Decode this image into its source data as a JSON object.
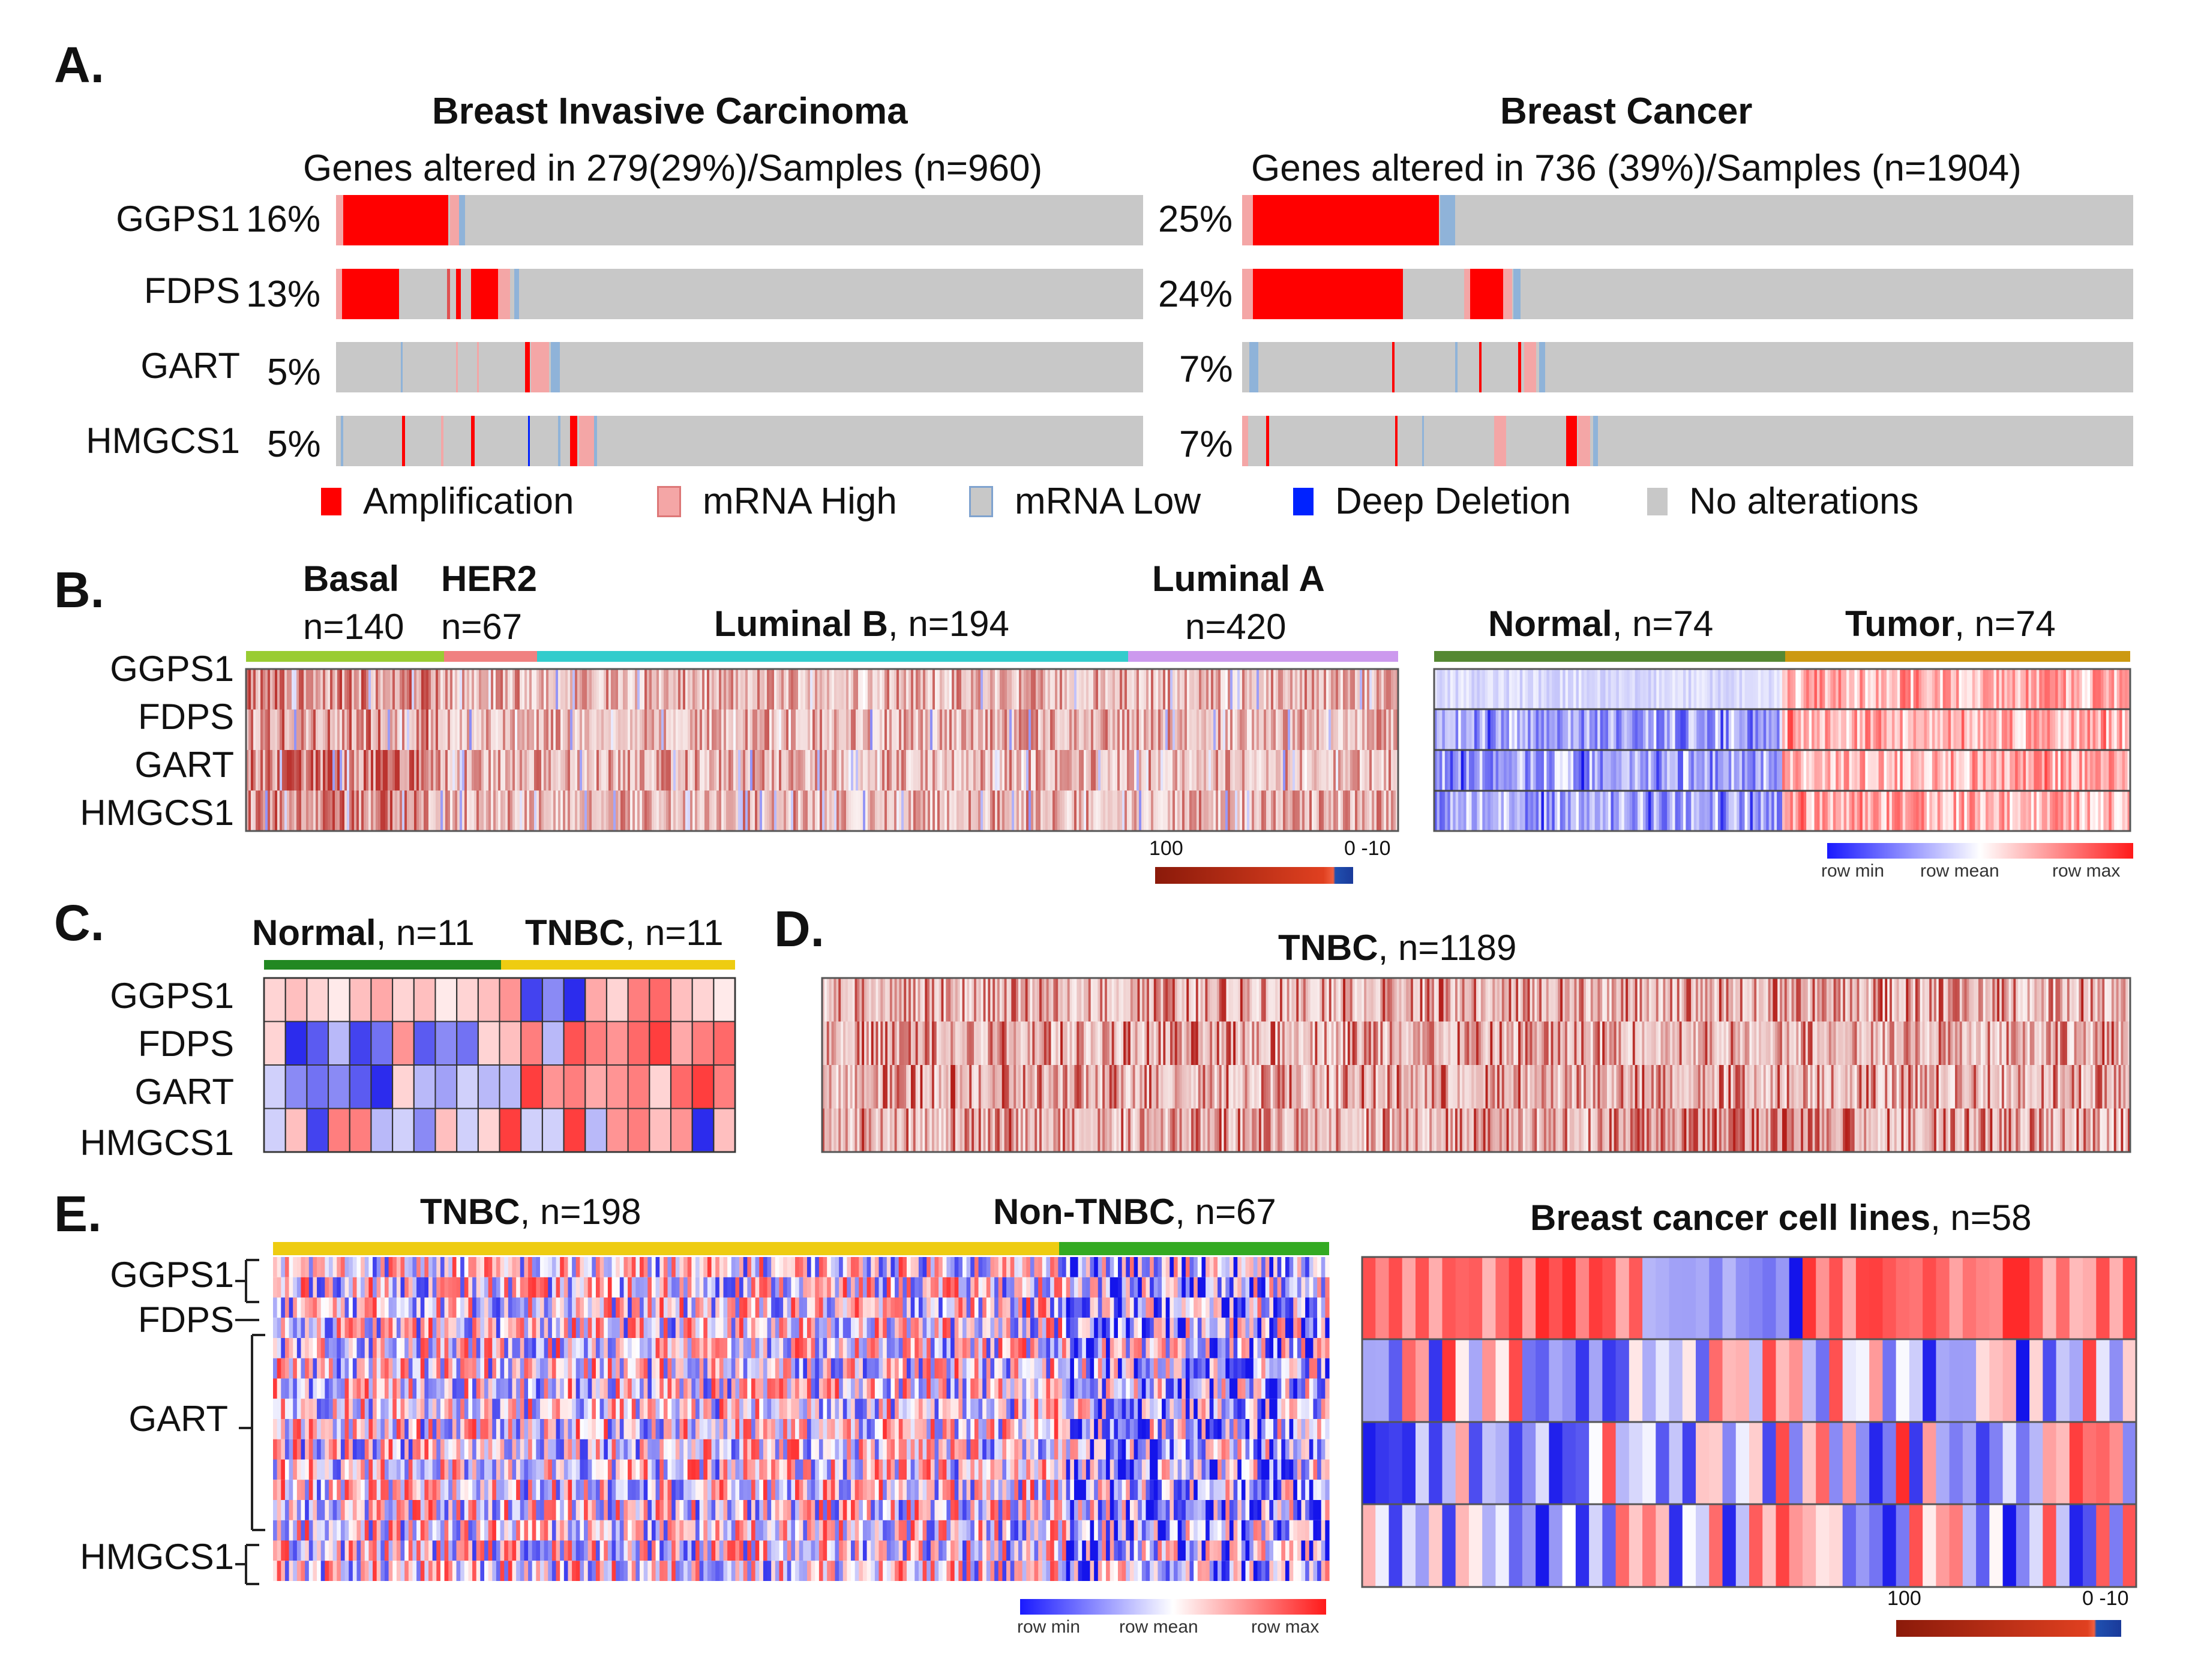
{
  "panels": {
    "A": {
      "label": "A.",
      "left": {
        "title": "Breast Invasive Carcinoma",
        "subtitle": "Genes altered in 279(29%)/Samples (n=960)",
        "rows": [
          {
            "gene": "GGPS1",
            "pct": "16%"
          },
          {
            "gene": "FDPS",
            "pct": "13%"
          },
          {
            "gene": "GART",
            "pct": "5%"
          },
          {
            "gene": "HMGCS1",
            "pct": "5%"
          }
        ]
      },
      "right": {
        "title": "Breast Cancer",
        "subtitle": "Genes altered in 736 (39%)/Samples (n=1904)",
        "rows": [
          {
            "gene": "GGPS1",
            "pct": "25%"
          },
          {
            "gene": "FDPS",
            "pct": "24%"
          },
          {
            "gene": "GART",
            "pct": "7%"
          },
          {
            "gene": "HMGCS1",
            "pct": "7%"
          }
        ]
      },
      "legend": [
        {
          "label": "Amplification",
          "color": "#ff0000"
        },
        {
          "label": "mRNA High",
          "color": "#f4a6a6"
        },
        {
          "label": "mRNA Low",
          "color": "#8fb3d9"
        },
        {
          "label": "Deep Deletion",
          "color": "#0022ff"
        },
        {
          "label": "No alterations",
          "color": "#c8c8c8"
        }
      ]
    },
    "B": {
      "label": "B.",
      "genes": [
        "GGPS1",
        "FDPS",
        "GART",
        "HMGCS1"
      ],
      "groups_left": [
        {
          "name": "Basal",
          "n": "n=140",
          "color": "#99cc33"
        },
        {
          "name": "HER2",
          "n": "n=67",
          "color": "#f08080"
        },
        {
          "name": "Luminal B",
          "n": ", n=194",
          "color": "#33cccc"
        },
        {
          "name": "Luminal A",
          "n": "n=420",
          "color": "#cc99ee"
        }
      ],
      "groups_right": [
        {
          "name": "Normal",
          "n": ", n=74",
          "color": "#558833"
        },
        {
          "name": "Tumor",
          "n": ", n=74",
          "color": "#cc9911"
        }
      ],
      "scale_left": {
        "max": "100",
        "min": "0 -10"
      },
      "scale_right": {
        "min": "row min",
        "mean": "row mean",
        "max": "row max"
      }
    },
    "C": {
      "label": "C.",
      "genes": [
        "GGPS1",
        "FDPS",
        "GART",
        "HMGCS1"
      ],
      "groups": [
        {
          "name": "Normal",
          "n": ", n=11",
          "color": "#228822"
        },
        {
          "name": "TNBC",
          "n": ", n=11",
          "color": "#eecc11"
        }
      ]
    },
    "D": {
      "label": "D.",
      "title_bold": "TNBC",
      "title_rest": ", n=1189"
    },
    "E": {
      "label": "E.",
      "genes": [
        "GGPS1",
        "FDPS",
        "GART",
        "HMGCS1"
      ],
      "groups": [
        {
          "name": "TNBC",
          "n": ", n=198",
          "color": "#eecc11"
        },
        {
          "name": "Non-TNBC",
          "n": ", n=67",
          "color": "#33aa22"
        }
      ],
      "scale": {
        "min": "row min",
        "mean": "row mean",
        "max": "row max"
      },
      "cell_lines": {
        "title_bold": "Breast cancer cell lines",
        "title_rest": ", n=58"
      },
      "cell_scale": {
        "max": "100",
        "min": "0 -10"
      }
    }
  }
}
